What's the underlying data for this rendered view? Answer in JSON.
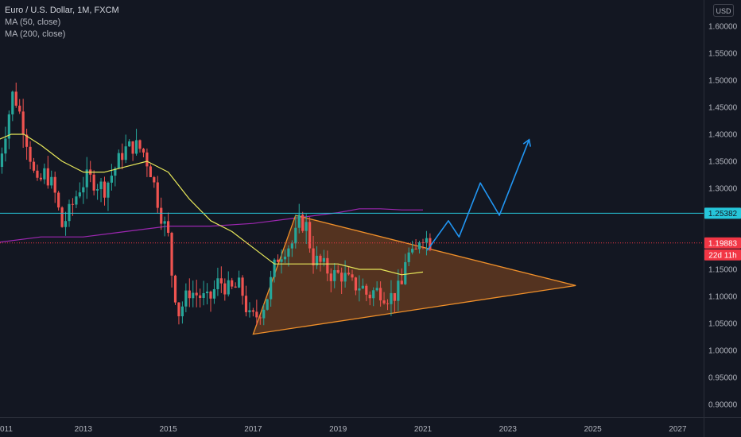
{
  "legend": {
    "title": "Euro / U.S. Dollar, 1M, FXCM",
    "ma50": "MA (50, close)",
    "ma200": "MA (200, close)"
  },
  "currency_button": "USD",
  "colors": {
    "background": "#131722",
    "bull": "#26a69a",
    "bear": "#ef5350",
    "ma50": "#e8e85a",
    "ma200": "#9c27b0",
    "resistance": "#26c6da",
    "triangle_fill": "#8a4a1f",
    "triangle_stroke": "#f0902a",
    "projection": "#2196f3",
    "price_tag": "#f23645",
    "resistance_tag": "#26c6da"
  },
  "chart_data": {
    "type": "candlestick",
    "symbol": "Euro / U.S. Dollar",
    "interval": "1M",
    "source": "FXCM",
    "ylim": [
      0.87,
      1.62
    ],
    "xlim": [
      2011.0,
      2028.5
    ],
    "y_ticks": [
      0.9,
      0.95,
      1.0,
      1.05,
      1.1,
      1.15,
      1.2,
      1.25,
      1.3,
      1.35,
      1.4,
      1.45,
      1.5,
      1.55,
      1.6
    ],
    "x_ticks": [
      "2013",
      "2015",
      "2017",
      "2019",
      "2021",
      "2023",
      "2025",
      "2027"
    ],
    "x_tick_values": [
      2013,
      2015,
      2017,
      2019,
      2021,
      2023,
      2025,
      2027
    ],
    "x_edge_label": "011",
    "close_path": [
      [
        2011.0,
        1.34
      ],
      [
        2011.2,
        1.42
      ],
      [
        2011.35,
        1.48
      ],
      [
        2011.5,
        1.44
      ],
      [
        2011.7,
        1.38
      ],
      [
        2011.9,
        1.3
      ],
      [
        2012.1,
        1.33
      ],
      [
        2012.3,
        1.3
      ],
      [
        2012.5,
        1.23
      ],
      [
        2012.7,
        1.26
      ],
      [
        2012.9,
        1.3
      ],
      [
        2013.1,
        1.32
      ],
      [
        2013.3,
        1.31
      ],
      [
        2013.5,
        1.3
      ],
      [
        2013.7,
        1.33
      ],
      [
        2013.95,
        1.37
      ],
      [
        2014.2,
        1.38
      ],
      [
        2014.4,
        1.37
      ],
      [
        2014.6,
        1.33
      ],
      [
        2014.8,
        1.26
      ],
      [
        2015.0,
        1.21
      ],
      [
        2015.1,
        1.13
      ],
      [
        2015.25,
        1.07
      ],
      [
        2015.5,
        1.11
      ],
      [
        2015.75,
        1.1
      ],
      [
        2015.95,
        1.09
      ],
      [
        2016.2,
        1.13
      ],
      [
        2016.45,
        1.11
      ],
      [
        2016.7,
        1.12
      ],
      [
        2016.9,
        1.06
      ],
      [
        2017.05,
        1.06
      ],
      [
        2017.3,
        1.09
      ],
      [
        2017.55,
        1.17
      ],
      [
        2017.75,
        1.19
      ],
      [
        2017.95,
        1.2
      ],
      [
        2018.1,
        1.24
      ],
      [
        2018.25,
        1.23
      ],
      [
        2018.4,
        1.17
      ],
      [
        2018.6,
        1.16
      ],
      [
        2018.85,
        1.14
      ],
      [
        2019.1,
        1.14
      ],
      [
        2019.35,
        1.12
      ],
      [
        2019.55,
        1.12
      ],
      [
        2019.7,
        1.1
      ],
      [
        2019.85,
        1.11
      ],
      [
        2020.0,
        1.11
      ],
      [
        2020.15,
        1.1
      ],
      [
        2020.3,
        1.1
      ],
      [
        2020.5,
        1.12
      ],
      [
        2020.6,
        1.18
      ],
      [
        2020.8,
        1.17
      ],
      [
        2020.95,
        1.22
      ],
      [
        2021.05,
        1.21
      ],
      [
        2021.15,
        1.2
      ]
    ],
    "ma50": [
      [
        2011.0,
        1.39
      ],
      [
        2011.3,
        1.4
      ],
      [
        2011.6,
        1.4
      ],
      [
        2012.0,
        1.38
      ],
      [
        2012.5,
        1.35
      ],
      [
        2013.0,
        1.33
      ],
      [
        2013.5,
        1.33
      ],
      [
        2014.0,
        1.34
      ],
      [
        2014.5,
        1.35
      ],
      [
        2015.0,
        1.33
      ],
      [
        2015.5,
        1.28
      ],
      [
        2016.0,
        1.24
      ],
      [
        2016.5,
        1.22
      ],
      [
        2017.0,
        1.19
      ],
      [
        2017.5,
        1.16
      ],
      [
        2018.0,
        1.16
      ],
      [
        2018.5,
        1.16
      ],
      [
        2019.0,
        1.16
      ],
      [
        2019.5,
        1.15
      ],
      [
        2020.0,
        1.15
      ],
      [
        2020.5,
        1.14
      ],
      [
        2021.0,
        1.145
      ]
    ],
    "ma200": [
      [
        2011.0,
        1.2
      ],
      [
        2012.0,
        1.21
      ],
      [
        2013.0,
        1.21
      ],
      [
        2014.0,
        1.22
      ],
      [
        2015.0,
        1.23
      ],
      [
        2016.0,
        1.23
      ],
      [
        2017.0,
        1.235
      ],
      [
        2018.0,
        1.245
      ],
      [
        2019.0,
        1.255
      ],
      [
        2019.5,
        1.262
      ],
      [
        2020.0,
        1.262
      ],
      [
        2020.5,
        1.26
      ],
      [
        2021.0,
        1.26
      ]
    ],
    "resistance_level": 1.25382,
    "current_price": 1.19883,
    "countdown": "22d 11h",
    "triangle": [
      [
        2017.0,
        1.03
      ],
      [
        2018.0,
        1.25
      ],
      [
        2024.6,
        1.12
      ]
    ],
    "projection_path": [
      [
        2021.1,
        1.185
      ],
      [
        2021.6,
        1.24
      ],
      [
        2021.85,
        1.21
      ],
      [
        2022.35,
        1.31
      ],
      [
        2022.8,
        1.25
      ],
      [
        2023.5,
        1.39
      ]
    ]
  }
}
